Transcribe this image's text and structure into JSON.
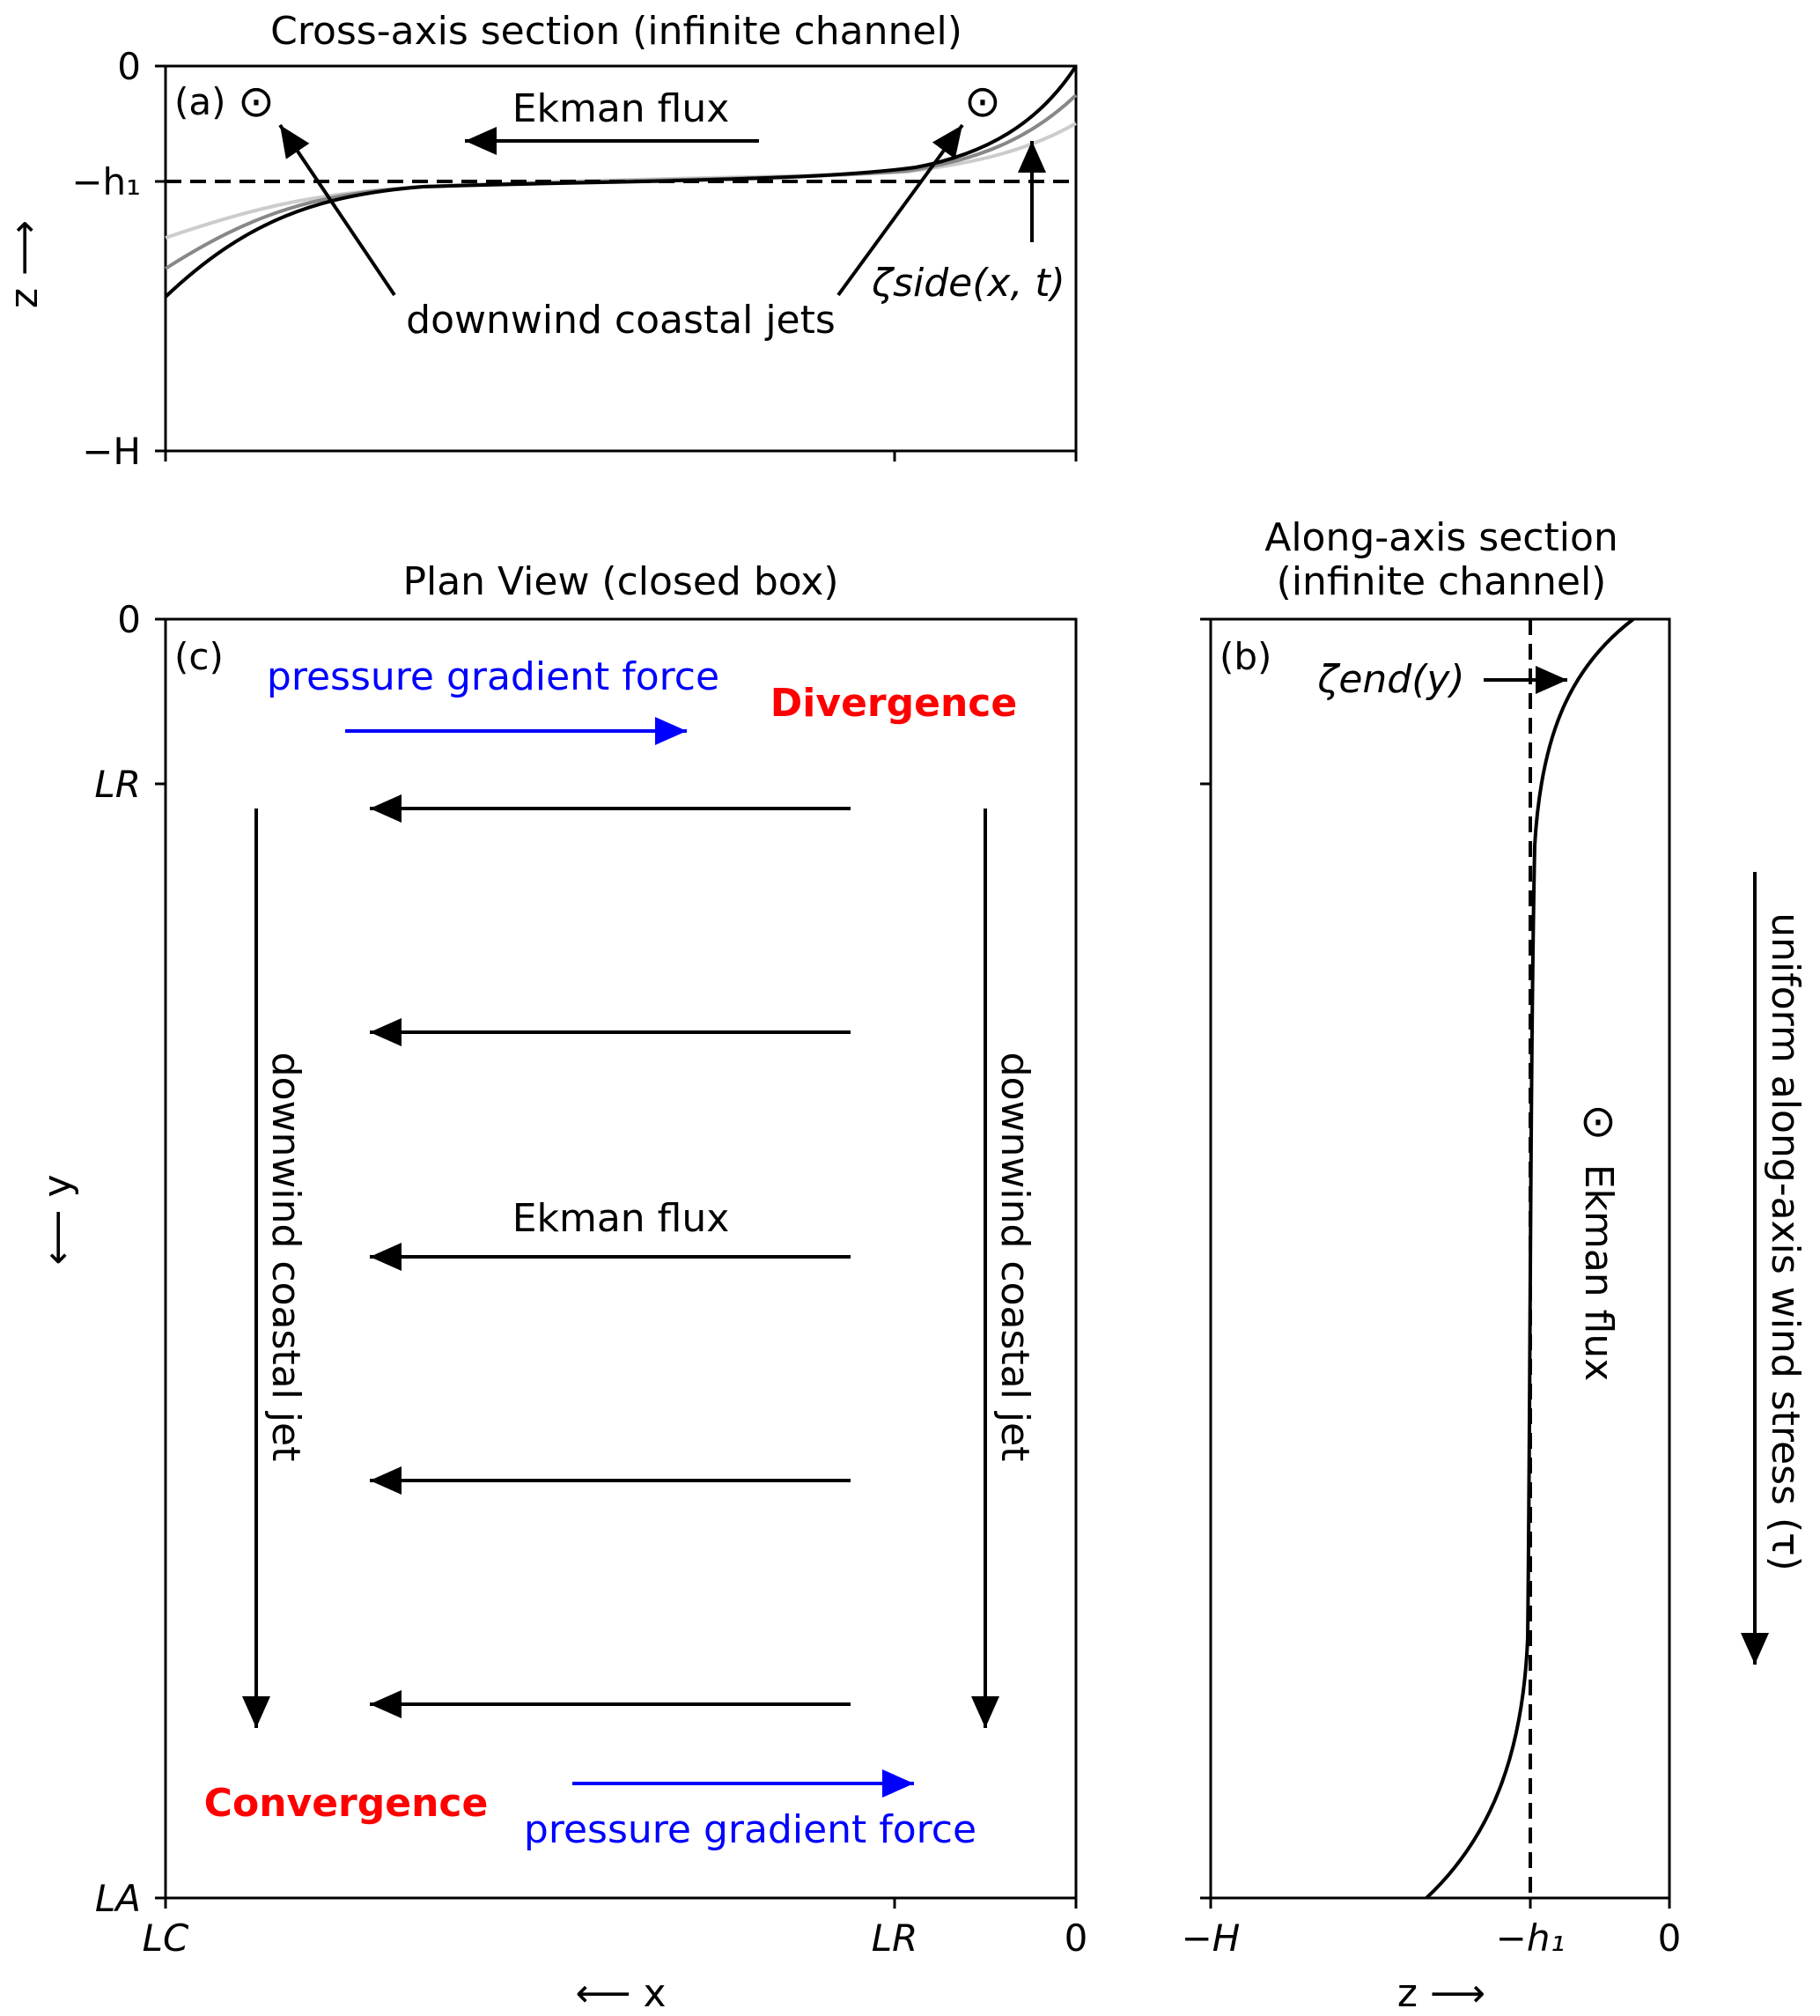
{
  "panel_a": {
    "title": "Cross-axis section (infinite channel)",
    "tag": "(a)",
    "y_ticks": [
      "0",
      "−h₁",
      "−H"
    ],
    "y_axis_label": "z ⟶",
    "ekman_label": "Ekman flux",
    "jets_label": "downwind coastal jets",
    "zeta_side_label": "ζside(x, t)",
    "out_of_page_symbol": "⊙",
    "curve_colors": [
      "#000000",
      "#888888",
      "#cccccc"
    ]
  },
  "panel_b": {
    "title_line1": "Along-axis section",
    "title_line2": "(infinite channel)",
    "tag": "(b)",
    "x_ticks": [
      "−H",
      "−h₁",
      "0"
    ],
    "x_axis_label": "z ⟶",
    "zeta_end_label": "ζend(y)",
    "ekman_label": "Ekman flux",
    "out_of_page_symbol": "⊙"
  },
  "panel_c": {
    "title": "Plan View (closed box)",
    "tag": "(c)",
    "y_ticks": [
      "0",
      "LR",
      "LA"
    ],
    "x_ticks": [
      "LC",
      "LR",
      "0"
    ],
    "x_axis_label": "⟵ x",
    "y_axis_label": "⟵ y",
    "pgf_top": "pressure gradient force",
    "pgf_bottom": "pressure gradient force",
    "divergence": "Divergence",
    "convergence": "Convergence",
    "ekman_label": "Ekman flux",
    "jet_left": "downwind coastal jet",
    "jet_right": "downwind coastal jet",
    "blue_color": "#0000ff",
    "red_color": "#ff0000"
  },
  "wind_label": "uniform along-axis wind stress (τ)"
}
